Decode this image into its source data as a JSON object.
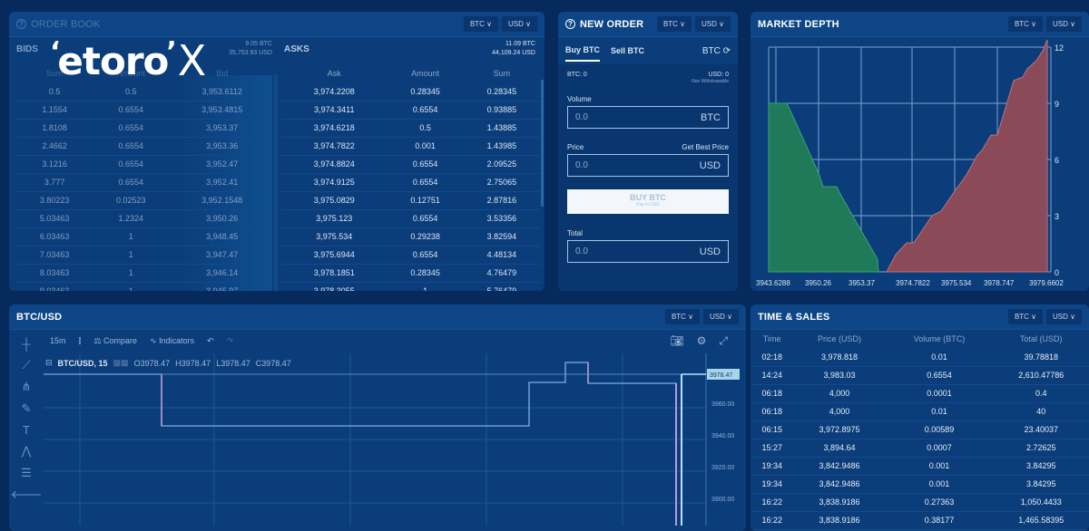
{
  "logo": {
    "text": "etoro",
    "suffix": "X"
  },
  "order_book": {
    "title": "ORDER BOOK",
    "selectors": [
      "BTC ∨",
      "USD ∨"
    ],
    "bids": {
      "label": "BIDS",
      "total_btc": "9.05 BTC",
      "total_usd": "35,753.93 USD",
      "columns": [
        "Sum",
        "Amount",
        "Bid"
      ],
      "rows": [
        [
          "0.5",
          "0.5",
          "3,953.6112"
        ],
        [
          "1.1554",
          "0.6554",
          "3,953.4815"
        ],
        [
          "1.8108",
          "0.6554",
          "3,953.37"
        ],
        [
          "2.4662",
          "0.6554",
          "3,953.36"
        ],
        [
          "3.1216",
          "0.6554",
          "3,952.47"
        ],
        [
          "3.777",
          "0.6554",
          "3,952.41"
        ],
        [
          "3.80223",
          "0.02523",
          "3,952.1548"
        ],
        [
          "5.03463",
          "1.2324",
          "3,950.26"
        ],
        [
          "6.03463",
          "1",
          "3,948.45"
        ],
        [
          "7.03463",
          "1",
          "3,947.47"
        ],
        [
          "8.03463",
          "1",
          "3,946.14"
        ],
        [
          "9.03463",
          "1",
          "3,945.97"
        ]
      ]
    },
    "asks": {
      "label": "ASKS",
      "total_btc": "11.09 BTC",
      "total_usd": "44,109.24 USD",
      "columns": [
        "Ask",
        "Amount",
        "Sum"
      ],
      "rows": [
        [
          "3,974.2208",
          "0.28345",
          "0.28345"
        ],
        [
          "3,974.3411",
          "0.6554",
          "0.93885"
        ],
        [
          "3,974.6218",
          "0.5",
          "1.43885"
        ],
        [
          "3,974.7822",
          "0.001",
          "1.43985"
        ],
        [
          "3,974.8824",
          "0.6554",
          "2.09525"
        ],
        [
          "3,974.9125",
          "0.6554",
          "2.75065"
        ],
        [
          "3,975.0829",
          "0.12751",
          "2.87816"
        ],
        [
          "3,975.123",
          "0.6554",
          "3.53356"
        ],
        [
          "3,975.534",
          "0.29238",
          "3.82594"
        ],
        [
          "3,975.6944",
          "0.6554",
          "4.48134"
        ],
        [
          "3,978.1851",
          "0.28345",
          "4.76479"
        ],
        [
          "3,978.3055",
          "1",
          "5.76479"
        ]
      ]
    }
  },
  "new_order": {
    "title": "NEW ORDER",
    "selectors": [
      "BTC ∨",
      "USD ∨"
    ],
    "tabs": [
      "Buy BTC",
      "Sell BTC"
    ],
    "currency": "BTC",
    "btc_balance": "BTC: 0",
    "usd_balance": "USD: 0",
    "non_withdrawable": "Non Withdrawable",
    "volume_label": "Volume",
    "volume_value": "0.0",
    "volume_unit": "BTC",
    "price_label": "Price",
    "best_price_link": "Get Best Price",
    "price_value": "0.0",
    "price_unit": "USD",
    "buy_button": "BUY BTC",
    "buy_button_sub": "Pay in USD",
    "total_label": "Total",
    "total_value": "0.0",
    "total_unit": "USD"
  },
  "market_depth": {
    "title": "MARKET DEPTH",
    "selectors": [
      "BTC ∨",
      "USD ∨"
    ]
  },
  "chart_panel": {
    "title": "BTC/USD",
    "selectors": [
      "BTC ∨",
      "USD ∨"
    ],
    "interval": "15m",
    "compare": "Compare",
    "indicators": "Indicators",
    "symbol": "BTC/USD, 15",
    "ohlc": {
      "o": "3978.47",
      "h": "3978.47",
      "l": "3978.47",
      "c": "3978.47"
    },
    "last_price": "3978.47",
    "price_ticks": [
      "3960.00",
      "3940.00",
      "3920.00",
      "3900.00"
    ]
  },
  "time_sales": {
    "title": "TIME & SALES",
    "selectors": [
      "BTC ∨",
      "USD ∨"
    ],
    "columns": [
      "Time",
      "Price (USD)",
      "Volume (BTC)",
      "Total (USD)"
    ],
    "rows": [
      [
        "02:18",
        "3,978.818",
        "0.01",
        "39.78818"
      ],
      [
        "14:24",
        "3,983.03",
        "0.6554",
        "2,610.47786"
      ],
      [
        "06:18",
        "4,000",
        "0.0001",
        "0.4"
      ],
      [
        "06:18",
        "4,000",
        "0.01",
        "40"
      ],
      [
        "06:15",
        "3,972.8975",
        "0.00589",
        "23.40037"
      ],
      [
        "15:27",
        "3,894.64",
        "0.0007",
        "2.72625"
      ],
      [
        "19:34",
        "3,842.9486",
        "0.001",
        "3.84295"
      ],
      [
        "19:34",
        "3,842.9486",
        "0.001",
        "3.84295"
      ],
      [
        "16:22",
        "3,838.9186",
        "0.27363",
        "1,050.4433"
      ],
      [
        "16:22",
        "3,838.9186",
        "0.38177",
        "1,465.58395"
      ]
    ]
  },
  "chart_data": {
    "type": "area",
    "title": "MARKET DEPTH",
    "x_tick_labels": [
      "3943.6288",
      "3950.26",
      "3953.37",
      "3974.7822",
      "3975.534",
      "3978.747",
      "3979.6602"
    ],
    "y_ticks": [
      0,
      3,
      6,
      9,
      12
    ],
    "ylim": [
      0,
      12
    ],
    "series": [
      {
        "name": "Bids",
        "color": "#1f7a5a",
        "x": [
          "3943.6288",
          "3950.26",
          "3953.37"
        ],
        "values": [
          9.03,
          4.0,
          0
        ]
      },
      {
        "name": "Asks",
        "color": "#8a4a58",
        "x": [
          "3974.7822",
          "3975.534",
          "3978.747",
          "3979.6602"
        ],
        "values": [
          0.28,
          3.5,
          6.3,
          11.1
        ]
      }
    ],
    "grid": true,
    "y_axis_position": "right"
  }
}
